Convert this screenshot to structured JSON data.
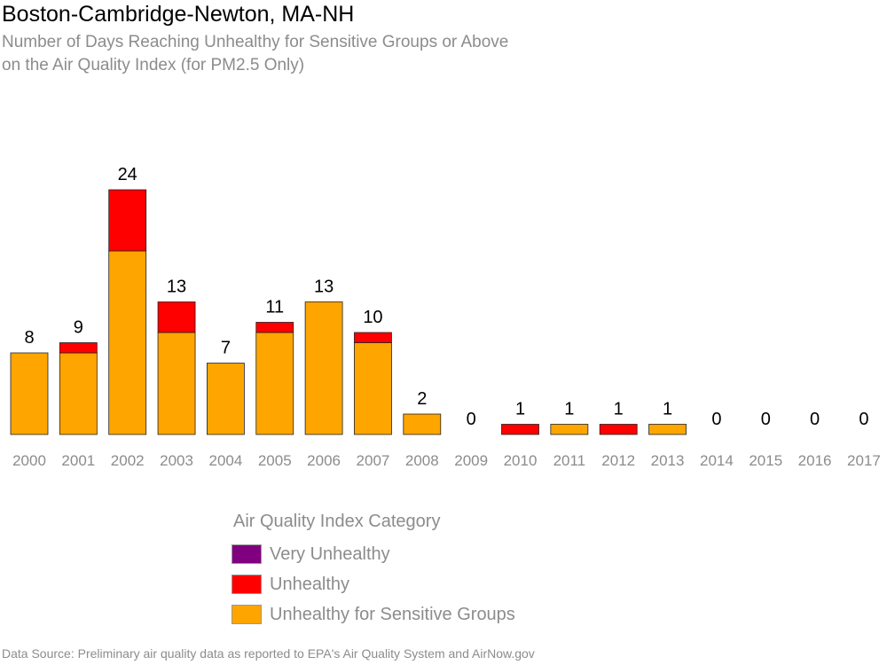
{
  "header": {
    "title": "Boston-Cambridge-Newton, MA-NH",
    "subtitle_line1": "Number of Days Reaching Unhealthy for Sensitive Groups or Above",
    "subtitle_line2": "on the Air Quality Index (for PM2.5 Only)"
  },
  "legend": {
    "title": "Air Quality Index Category",
    "items": [
      {
        "label": "Very Unhealthy",
        "color": "#800080"
      },
      {
        "label": "Unhealthy",
        "color": "#ff0000"
      },
      {
        "label": "Unhealthy for Sensitive Groups",
        "color": "#ffa500"
      }
    ]
  },
  "footer": {
    "source": "Data Source: Preliminary air quality data as reported to EPA's Air Quality System and AirNow.gov"
  },
  "chart_data": {
    "type": "bar",
    "stacked": true,
    "categories": [
      "2000",
      "2001",
      "2002",
      "2003",
      "2004",
      "2005",
      "2006",
      "2007",
      "2008",
      "2009",
      "2010",
      "2011",
      "2012",
      "2013",
      "2014",
      "2015",
      "2016",
      "2017"
    ],
    "series": [
      {
        "name": "Unhealthy for Sensitive Groups",
        "color": "#ffa500",
        "values": [
          8,
          8,
          18,
          10,
          7,
          10,
          13,
          9,
          2,
          0,
          0,
          1,
          0,
          1,
          0,
          0,
          0,
          0
        ]
      },
      {
        "name": "Unhealthy",
        "color": "#ff0000",
        "values": [
          0,
          1,
          6,
          3,
          0,
          1,
          0,
          1,
          0,
          0,
          1,
          0,
          1,
          0,
          0,
          0,
          0,
          0
        ]
      },
      {
        "name": "Very Unhealthy",
        "color": "#800080",
        "values": [
          0,
          0,
          0,
          0,
          0,
          0,
          0,
          0,
          0,
          0,
          0,
          0,
          0,
          0,
          0,
          0,
          0,
          0
        ]
      }
    ],
    "totals": [
      8,
      9,
      24,
      13,
      7,
      11,
      13,
      10,
      2,
      0,
      1,
      1,
      1,
      1,
      0,
      0,
      0,
      0
    ],
    "ylim": [
      0,
      24
    ],
    "grid": false,
    "legend_position": "bottom"
  }
}
